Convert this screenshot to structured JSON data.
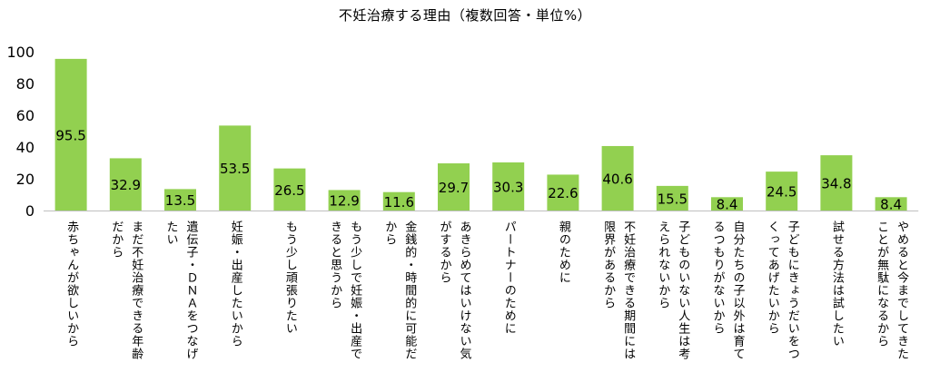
{
  "chart_data": {
    "type": "bar",
    "title": "不妊治療する理由（複数回答・単位%）",
    "xlabel": "",
    "ylabel": "",
    "ylim": [
      0,
      100
    ],
    "yticks": [
      "0",
      "20",
      "40",
      "60",
      "80",
      "100"
    ],
    "grid": false,
    "bar_color": "#92d050",
    "categories": [
      "赤ちゃんが欲しいから",
      "まだ不妊治療できる年齢\nだから",
      "遺伝子・ＤＮＡをつなげ\nたい",
      "妊娠・出産したいから",
      "もう少し頑張りたい",
      "もう少しで妊娠・出産で\nきると思うから",
      "金銭的・時間的に可能だ\nから",
      "あきらめてはいけない気\nがするから",
      "パートナーのために",
      "親のために",
      "不妊治療できる期間には\n限界があるから",
      "子どものいない人生は考\nえられないから",
      "自分たちの子以外は育て\nるつもりがないから",
      "子どもにきょうだいをつ\nくってあげたいから",
      "試せる方法は試したい",
      "やめると今までしてきた\nことが無駄になるから"
    ],
    "values": [
      95.5,
      32.9,
      13.5,
      53.5,
      26.5,
      12.9,
      11.6,
      29.7,
      30.3,
      22.6,
      40.6,
      15.5,
      8.4,
      24.5,
      34.8,
      8.4
    ],
    "value_labels": [
      "95.5",
      "32.9",
      "13.5",
      "53.5",
      "26.5",
      "12.9",
      "11.6",
      "29.7",
      "30.3",
      "22.6",
      "40.6",
      "15.5",
      "8.4",
      "24.5",
      "34.8",
      "8.4"
    ]
  }
}
